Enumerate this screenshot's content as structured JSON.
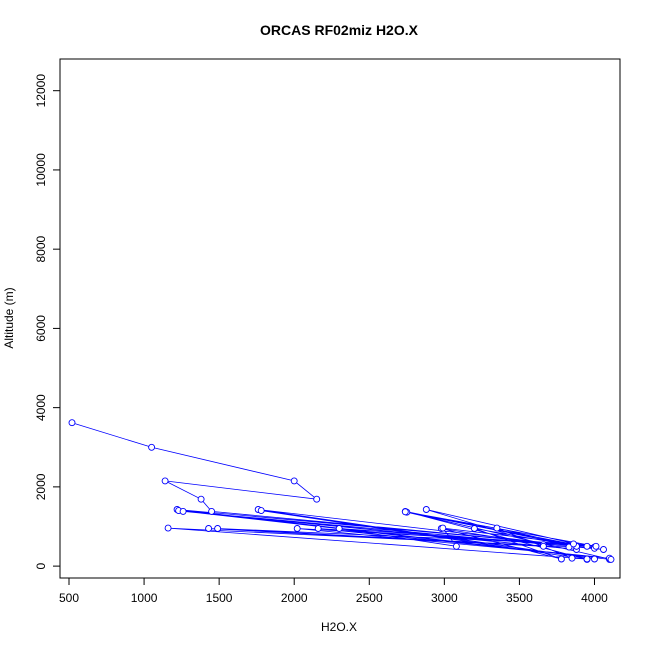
{
  "chart_data": {
    "type": "scatter",
    "title": "ORCAS RF02miz H2O.X",
    "xlabel": "H2O.X",
    "ylabel": "Altitude (m)",
    "xlim": [
      440,
      4170
    ],
    "ylim": [
      -300,
      12800
    ],
    "xticks": [
      500,
      1000,
      1500,
      2000,
      2500,
      3000,
      3500,
      4000
    ],
    "yticks": [
      0,
      2000,
      4000,
      6000,
      8000,
      10000,
      12000
    ],
    "series_color": "#0000ff",
    "grid": false,
    "legend": "none",
    "series": [
      {
        "style": "line+points",
        "points": [
          [
            520,
            3620
          ],
          [
            1050,
            3000
          ],
          [
            2000,
            2150
          ],
          [
            2150,
            1690
          ],
          [
            1140,
            2150
          ],
          [
            1380,
            1690
          ],
          [
            1450,
            1380
          ],
          [
            4000,
            480
          ],
          [
            1220,
            1430
          ],
          [
            4100,
            170
          ],
          [
            1230,
            1400
          ],
          [
            3880,
            420
          ],
          [
            1260,
            1380
          ],
          [
            4060,
            420
          ],
          [
            1760,
            1430
          ],
          [
            4000,
            180
          ],
          [
            1780,
            1400
          ],
          [
            3950,
            170
          ],
          [
            2740,
            1380
          ],
          [
            3880,
            500
          ],
          [
            2750,
            1360
          ],
          [
            4000,
            450
          ],
          [
            2880,
            1430
          ],
          [
            3660,
            540
          ],
          [
            2980,
            950
          ],
          [
            3780,
            180
          ],
          [
            3200,
            950
          ],
          [
            3880,
            500
          ],
          [
            3350,
            960
          ],
          [
            3850,
            200
          ],
          [
            3950,
            180
          ],
          [
            1160,
            960
          ],
          [
            3830,
            480
          ],
          [
            1430,
            950
          ],
          [
            3660,
            500
          ],
          [
            1490,
            950
          ],
          [
            3860,
            560
          ],
          [
            2020,
            950
          ],
          [
            4100,
            200
          ],
          [
            2160,
            950
          ],
          [
            3950,
            500
          ],
          [
            2300,
            950
          ],
          [
            3080,
            500
          ],
          [
            2990,
            960
          ],
          [
            4010,
            500
          ],
          [
            2740,
            1370
          ],
          [
            4110,
            170
          ]
        ]
      }
    ]
  }
}
